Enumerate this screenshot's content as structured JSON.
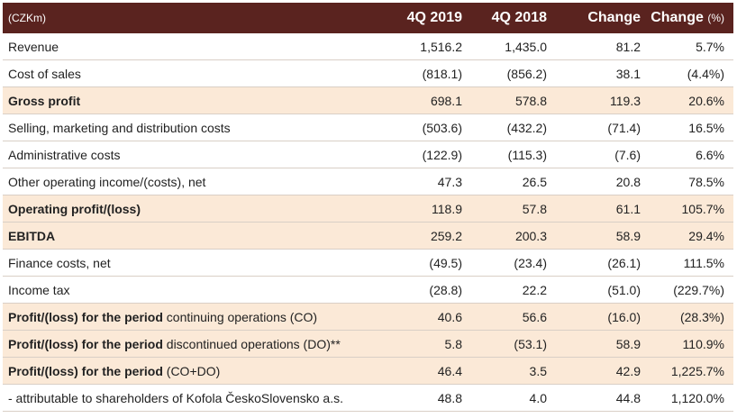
{
  "header": {
    "label": "(CZKm)",
    "col1": "4Q 2019",
    "col2": "4Q 2018",
    "col3": "Change",
    "col4": "Change",
    "col4_unit": "(%)"
  },
  "rows": [
    {
      "bold": "",
      "label": "Revenue",
      "c1": "1,516.2",
      "c2": "1,435.0",
      "c3": "81.2",
      "c4": "5.7%"
    },
    {
      "bold": "",
      "label": "Cost of sales",
      "c1": "(818.1)",
      "c2": "(856.2)",
      "c3": "38.1",
      "c4": "(4.4%)"
    },
    {
      "bold": "Gross profit",
      "label": "",
      "c1": "698.1",
      "c2": "578.8",
      "c3": "119.3",
      "c4": "20.6%"
    },
    {
      "bold": "",
      "label": "Selling, marketing and distribution costs",
      "c1": "(503.6)",
      "c2": "(432.2)",
      "c3": "(71.4)",
      "c4": "16.5%"
    },
    {
      "bold": "",
      "label": "Administrative costs",
      "c1": "(122.9)",
      "c2": "(115.3)",
      "c3": "(7.6)",
      "c4": "6.6%"
    },
    {
      "bold": "",
      "label": "Other operating income/(costs), net",
      "c1": "47.3",
      "c2": "26.5",
      "c3": "20.8",
      "c4": "78.5%"
    },
    {
      "bold": "Operating profit/(loss)",
      "label": "",
      "c1": "118.9",
      "c2": "57.8",
      "c3": "61.1",
      "c4": "105.7%"
    },
    {
      "bold": "EBITDA",
      "label": "",
      "c1": "259.2",
      "c2": "200.3",
      "c3": "58.9",
      "c4": "29.4%"
    },
    {
      "bold": "",
      "label": "Finance costs, net",
      "c1": "(49.5)",
      "c2": "(23.4)",
      "c3": "(26.1)",
      "c4": "111.5%"
    },
    {
      "bold": "",
      "label": "Income tax",
      "c1": "(28.8)",
      "c2": "22.2",
      "c3": "(51.0)",
      "c4": "(229.7%)"
    },
    {
      "bold": "Profit/(loss) for the period",
      "label": " continuing operations (CO)",
      "c1": "40.6",
      "c2": "56.6",
      "c3": "(16.0)",
      "c4": "(28.3%)"
    },
    {
      "bold": "Profit/(loss) for the period",
      "label": " discontinued operations (DO)**",
      "c1": "5.8",
      "c2": "(53.1)",
      "c3": "58.9",
      "c4": "110.9%"
    },
    {
      "bold": "Profit/(loss) for the period",
      "label": " (CO+DO)",
      "c1": "46.4",
      "c2": "3.5",
      "c3": "42.9",
      "c4": "1,225.7%"
    },
    {
      "bold": "",
      "label": "- attributable to shareholders of Kofola ČeskoSlovensko a.s.",
      "c1": "48.8",
      "c2": "4.0",
      "c3": "44.8",
      "c4": "1,120.0%"
    }
  ]
}
